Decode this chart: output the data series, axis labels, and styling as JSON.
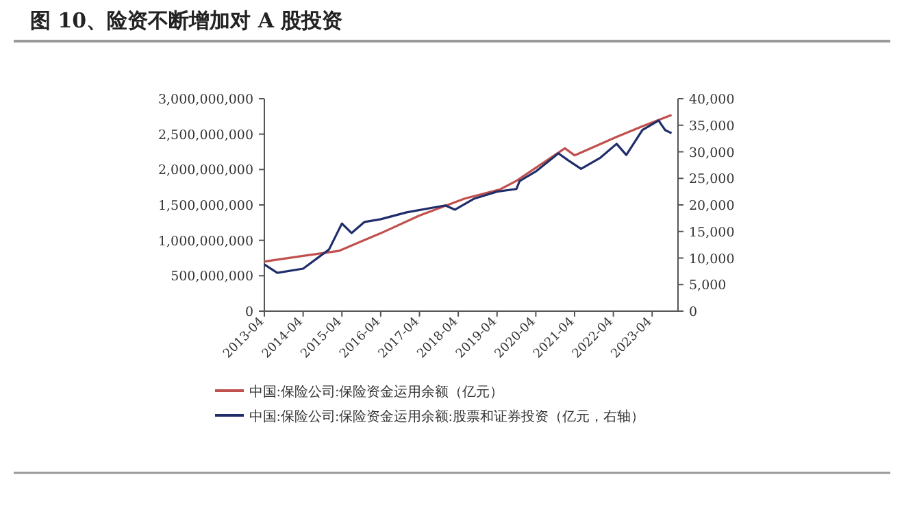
{
  "chart_data": {
    "type": "line",
    "title": "图 10、险资不断增加对 A 股投资",
    "legend": "bottom",
    "grid": false,
    "line_style": "solid",
    "xlim": [
      "2013-04",
      "2023-12"
    ],
    "xticks": [
      "2013-04",
      "2014-04",
      "2015-04",
      "2016-04",
      "2017-04",
      "2018-04",
      "2019-04",
      "2020-04",
      "2021-04",
      "2022-04",
      "2023-04"
    ],
    "ylim": [
      0,
      3000000000
    ],
    "yticks": [
      {
        "value": 0,
        "label": "0"
      },
      {
        "value": 500000000,
        "label": "500,000,000"
      },
      {
        "value": 1000000000,
        "label": "1,000,000,000"
      },
      {
        "value": 1500000000,
        "label": "1,500,000,000"
      },
      {
        "value": 2000000000,
        "label": "2,000,000,000"
      },
      {
        "value": 2500000000,
        "label": "2,500,000,000"
      },
      {
        "value": 3000000000,
        "label": "3,000,000,000"
      }
    ],
    "y2lim": [
      0,
      40000
    ],
    "y2ticks": [
      {
        "value": 0,
        "label": "0"
      },
      {
        "value": 5000,
        "label": "5,000"
      },
      {
        "value": 10000,
        "label": "10,000"
      },
      {
        "value": 15000,
        "label": "15,000"
      },
      {
        "value": 20000,
        "label": "20,000"
      },
      {
        "value": 25000,
        "label": "25,000"
      },
      {
        "value": 30000,
        "label": "30,000"
      },
      {
        "value": 35000,
        "label": "35,000"
      },
      {
        "value": 40000,
        "label": "40,000"
      }
    ],
    "series": [
      {
        "name": "中国:保险公司:保险资金运用余额（亿元）",
        "color": "#c0504d",
        "x": [
          "2013-04",
          "2014-04",
          "2015-03",
          "2016-04",
          "2017-04",
          "2018-06",
          "2019-05",
          "2019-10",
          "2021-01",
          "2021-04",
          "2022-05",
          "2023-01",
          "2023-10"
        ],
        "values": [
          700000000,
          780000000,
          850000000,
          1100000000,
          1350000000,
          1590000000,
          1720000000,
          1840000000,
          2300000000,
          2200000000,
          2460000000,
          2610000000,
          2770000000
        ]
      },
      {
        "name": "中国:保险公司:保险资金运用余额:股票和证券投资（亿元，右轴）",
        "color": "#1f2d6b",
        "axis": "y2",
        "x": [
          "2013-04",
          "2013-08",
          "2014-04",
          "2014-12",
          "2015-04",
          "2015-07",
          "2015-11",
          "2016-04",
          "2016-12",
          "2017-12",
          "2018-03",
          "2018-09",
          "2019-04",
          "2019-10",
          "2019-11",
          "2020-04",
          "2020-11",
          "2021-02",
          "2021-06",
          "2021-12",
          "2022-05",
          "2022-08",
          "2023-01",
          "2023-06",
          "2023-08",
          "2023-10"
        ],
        "values": [
          8800,
          7200,
          8000,
          11600,
          16500,
          14700,
          16800,
          17300,
          18600,
          19900,
          19100,
          21200,
          22500,
          23000,
          24500,
          26300,
          29700,
          28400,
          26800,
          28900,
          31500,
          29400,
          34100,
          35900,
          34100,
          33500
        ]
      }
    ]
  }
}
